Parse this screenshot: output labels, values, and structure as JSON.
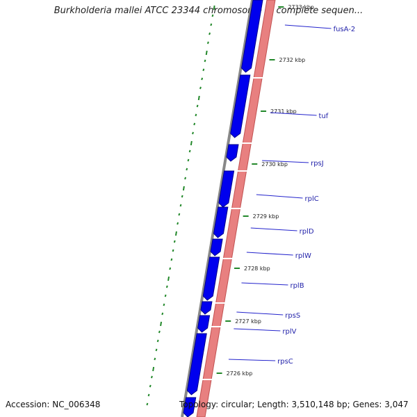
{
  "title": "Burkholderia mallei ATCC 23344 chromosome 1, complete sequen...",
  "footer": {
    "accession": "Accession: NC_006348",
    "topology": "Topology: circular; Length: 3,510,148 bp; Genes: 3,047"
  },
  "colors": {
    "forward_genes": "#0000ee",
    "reverse_band": "#e88080",
    "backbone": "#888888",
    "gc_marks": "#22882a",
    "label": "#2222aa"
  },
  "ticks": [
    {
      "label": "2733 kbp"
    },
    {
      "label": "2732 kbp"
    },
    {
      "label": "2731 kbp"
    },
    {
      "label": "2730 kbp"
    },
    {
      "label": "2729 kbp"
    },
    {
      "label": "2728 kbp"
    },
    {
      "label": "2727 kbp"
    },
    {
      "label": "2726 kbp"
    }
  ],
  "genes": [
    {
      "name": "fusA-2"
    },
    {
      "name": "tuf"
    },
    {
      "name": "rpsJ"
    },
    {
      "name": "rplC"
    },
    {
      "name": "rplD"
    },
    {
      "name": "rplW"
    },
    {
      "name": "rplB"
    },
    {
      "name": "rpsS"
    },
    {
      "name": "rplV"
    },
    {
      "name": "rpsC"
    }
  ]
}
